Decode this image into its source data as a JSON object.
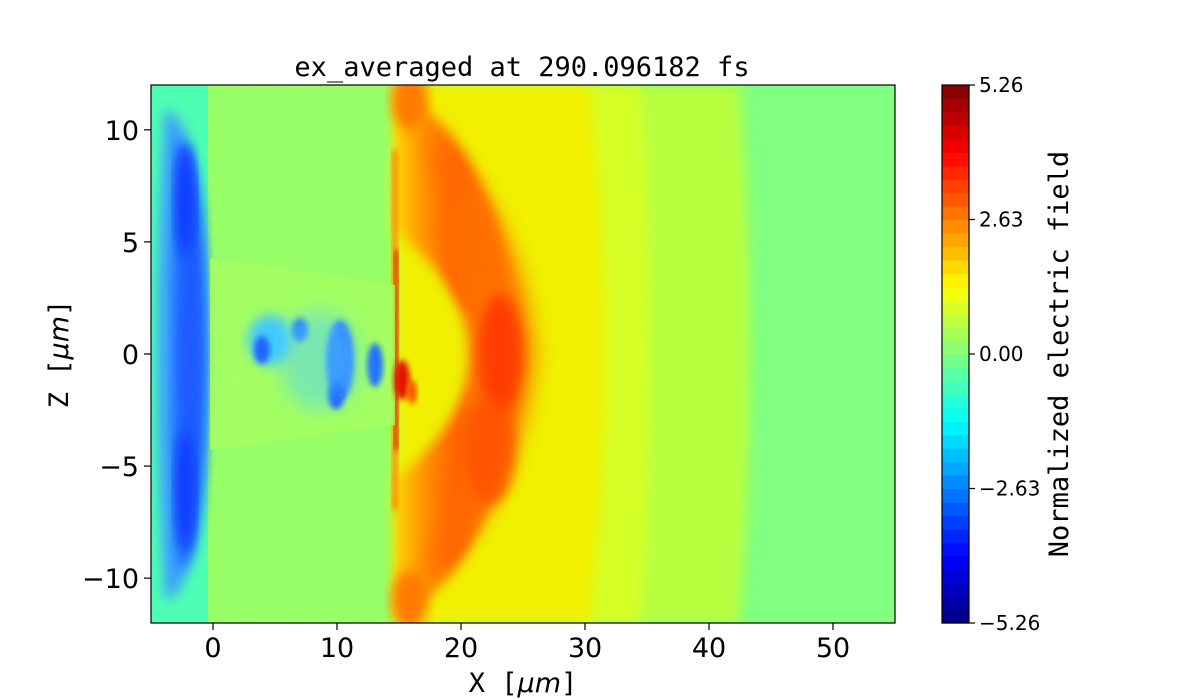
{
  "chart_data": {
    "type": "heatmap",
    "title": "ex_averaged at 290.096182 fs",
    "xlabel": "X [",
    "xlabel_unit": "μm",
    "xlabel_close": "]",
    "ylabel": "Z [",
    "ylabel_unit": "μm",
    "ylabel_close": "]",
    "xlim": [
      -5,
      55
    ],
    "ylim": [
      -12,
      12
    ],
    "x_ticks": [
      0,
      10,
      20,
      30,
      40,
      50
    ],
    "x_tick_labels": [
      "0",
      "10",
      "20",
      "30",
      "40",
      "50"
    ],
    "y_ticks": [
      10,
      5,
      0,
      -5,
      -10
    ],
    "y_tick_labels": [
      "10",
      "5",
      "0",
      "−5",
      "−10"
    ],
    "colorbar": {
      "label": "Normalized electric field",
      "min": -5.26,
      "max": 5.26,
      "ticks": [
        5.26,
        2.63,
        0.0,
        -2.63,
        -5.26
      ],
      "tick_labels": [
        "5.26",
        "2.63",
        "0.00",
        "−2.63",
        "−5.26"
      ],
      "colormap": "jet"
    },
    "features": [
      {
        "desc": "negative field band at target front",
        "x": -1.5,
        "z_extent": [
          -11,
          11
        ],
        "value": -3.0
      },
      {
        "desc": "filament region with negative patches",
        "x_extent": [
          3,
          14
        ],
        "z_extent": [
          -3,
          3
        ],
        "value": -2.5
      },
      {
        "desc": "positive spike at rear surface",
        "x": 15,
        "value": 3.5
      },
      {
        "desc": "outgoing positive wavefront",
        "x": 23,
        "z_extent": [
          -10,
          10
        ],
        "value": 3.0
      },
      {
        "desc": "weak positive trailing field",
        "x_extent": [
          27,
          42
        ],
        "value": 1.2
      }
    ]
  }
}
